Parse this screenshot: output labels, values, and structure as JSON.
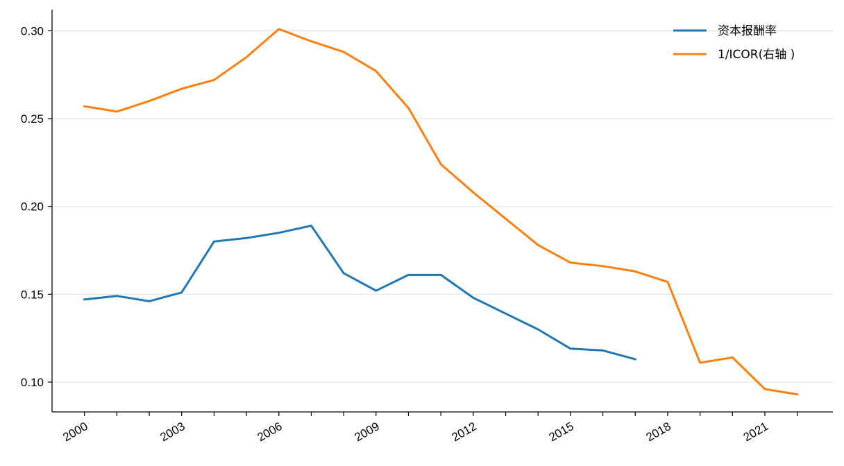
{
  "chart_data": {
    "type": "line",
    "title": "",
    "xlabel": "",
    "ylabel": "",
    "x": [
      2000,
      2001,
      2002,
      2003,
      2004,
      2005,
      2006,
      2007,
      2008,
      2009,
      2010,
      2011,
      2012,
      2013,
      2014,
      2015,
      2016,
      2017,
      2018,
      2019,
      2020,
      2021,
      2022
    ],
    "x_tick_labels": [
      "2000",
      "2003",
      "2006",
      "2009",
      "2012",
      "2015",
      "2018",
      "2021"
    ],
    "x_tick_values": [
      2000,
      2003,
      2006,
      2009,
      2012,
      2015,
      2018,
      2021
    ],
    "xlim": [
      1999,
      2023.1
    ],
    "ylim": [
      0.083,
      0.312
    ],
    "y_ticks": [
      0.1,
      0.15,
      0.2,
      0.25,
      0.3
    ],
    "y_tick_labels": [
      "0.10",
      "0.15",
      "0.20",
      "0.25",
      "0.30"
    ],
    "grid": "horizontal",
    "legend_position": "top-right",
    "series": [
      {
        "name": "资本报酬率",
        "color": "#1f77b4",
        "values": [
          0.147,
          0.149,
          0.146,
          0.151,
          0.18,
          0.182,
          0.185,
          0.189,
          0.162,
          0.152,
          0.161,
          0.161,
          0.148,
          0.139,
          0.13,
          0.119,
          0.118,
          0.113,
          null,
          null,
          null,
          null,
          null
        ]
      },
      {
        "name": "1/ICOR(右轴 )",
        "color": "#ff7f0e",
        "values": [
          0.257,
          0.254,
          0.26,
          0.267,
          0.272,
          0.285,
          0.301,
          0.294,
          0.288,
          0.277,
          0.256,
          0.224,
          0.208,
          0.193,
          0.178,
          0.168,
          0.166,
          0.163,
          0.157,
          0.111,
          0.114,
          0.096,
          0.093
        ]
      }
    ]
  }
}
